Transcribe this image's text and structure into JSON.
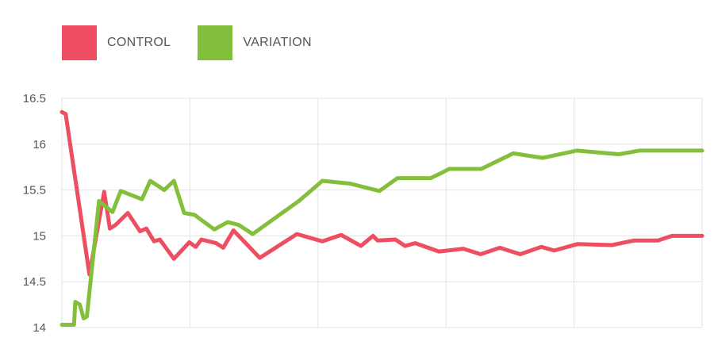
{
  "chart_data": {
    "type": "line",
    "title": "",
    "xlabel": "",
    "ylabel": "",
    "ylim": [
      14,
      16.5
    ],
    "yticks": [
      "14",
      "14.5",
      "15",
      "15.5",
      "16",
      "16.5"
    ],
    "xlim": [
      0,
      100
    ],
    "grid": true,
    "legend_position": "top-left",
    "series": [
      {
        "name": "CONTROL",
        "color": "#ee4e62",
        "points": [
          [
            0,
            16.35
          ],
          [
            0.6,
            16.33
          ],
          [
            4.3,
            14.58
          ],
          [
            6.6,
            15.48
          ],
          [
            7.5,
            15.08
          ],
          [
            8.4,
            15.12
          ],
          [
            10.3,
            15.25
          ],
          [
            12.2,
            15.05
          ],
          [
            13.2,
            15.08
          ],
          [
            14.4,
            14.94
          ],
          [
            15.3,
            14.96
          ],
          [
            17.5,
            14.75
          ],
          [
            19.9,
            14.93
          ],
          [
            20.9,
            14.88
          ],
          [
            21.8,
            14.96
          ],
          [
            24.1,
            14.92
          ],
          [
            25.2,
            14.87
          ],
          [
            26.8,
            15.06
          ],
          [
            30.9,
            14.76
          ],
          [
            36.7,
            15.02
          ],
          [
            40.7,
            14.94
          ],
          [
            43.6,
            15.01
          ],
          [
            46.7,
            14.89
          ],
          [
            48.6,
            15.0
          ],
          [
            49.3,
            14.95
          ],
          [
            52.1,
            14.96
          ],
          [
            53.6,
            14.89
          ],
          [
            55.2,
            14.92
          ],
          [
            58.9,
            14.83
          ],
          [
            62.7,
            14.86
          ],
          [
            65.4,
            14.8
          ],
          [
            68.4,
            14.87
          ],
          [
            71.6,
            14.8
          ],
          [
            74.9,
            14.88
          ],
          [
            76.9,
            14.84
          ],
          [
            80.5,
            14.91
          ],
          [
            85.9,
            14.9
          ],
          [
            89.4,
            14.95
          ],
          [
            93.1,
            14.95
          ],
          [
            95.3,
            15.0
          ],
          [
            100,
            15.0
          ]
        ]
      },
      {
        "name": "VARIATION",
        "color": "#84bf3c",
        "points": [
          [
            0,
            14.03
          ],
          [
            1.9,
            14.03
          ],
          [
            2.1,
            14.28
          ],
          [
            2.8,
            14.25
          ],
          [
            3.4,
            14.1
          ],
          [
            3.9,
            14.12
          ],
          [
            5.8,
            15.38
          ],
          [
            7.9,
            15.26
          ],
          [
            9.2,
            15.49
          ],
          [
            12.5,
            15.4
          ],
          [
            13.8,
            15.6
          ],
          [
            16.0,
            15.5
          ],
          [
            17.5,
            15.6
          ],
          [
            19.1,
            15.25
          ],
          [
            20.7,
            15.23
          ],
          [
            23.8,
            15.07
          ],
          [
            25.9,
            15.15
          ],
          [
            27.6,
            15.12
          ],
          [
            29.8,
            15.02
          ],
          [
            37.0,
            15.38
          ],
          [
            40.7,
            15.6
          ],
          [
            45.0,
            15.57
          ],
          [
            49.6,
            15.49
          ],
          [
            52.4,
            15.63
          ],
          [
            57.6,
            15.63
          ],
          [
            59.1,
            15.68
          ],
          [
            60.5,
            15.73
          ],
          [
            65.5,
            15.73
          ],
          [
            70.5,
            15.9
          ],
          [
            75.1,
            15.85
          ],
          [
            80.4,
            15.93
          ],
          [
            87.0,
            15.89
          ],
          [
            90.2,
            15.93
          ],
          [
            100,
            15.93
          ]
        ]
      }
    ]
  }
}
